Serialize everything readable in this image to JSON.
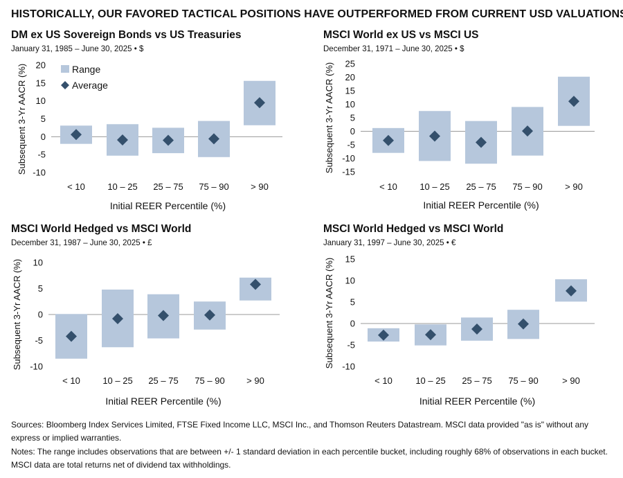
{
  "title": "HISTORICALLY, OUR FAVORED TACTICAL POSITIONS HAVE OUTPERFORMED FROM CURRENT USD VALUATIONS",
  "colors": {
    "range": "#b6c7dc",
    "average": "#34506c",
    "zero_line": "#9a9a9a"
  },
  "chart_data": [
    {
      "type": "bar",
      "title": "DM ex US Sovereign Bonds vs US Treasuries",
      "subtitle": "January 31, 1985 – June 30, 2025 • $",
      "xlabel": "Initial REER Percentile (%)",
      "ylabel": "Subsequent 3-Yr AACR (%)",
      "ylim": [
        -10,
        20
      ],
      "yticks": [
        20,
        15,
        10,
        5,
        0,
        -5,
        -10
      ],
      "categories": [
        "< 10",
        "10 – 25",
        "25 – 75",
        "75 – 90",
        "> 90"
      ],
      "legend": {
        "placement": "top-left",
        "range_label": "Range",
        "average_label": "Average"
      },
      "series": [
        {
          "name": "Range",
          "low": [
            -2,
            -5.3,
            -4.6,
            -5.7,
            3.2
          ],
          "high": [
            3.1,
            3.5,
            2.5,
            4.4,
            15.6
          ]
        },
        {
          "name": "Average",
          "values": [
            0.6,
            -0.9,
            -1,
            -0.6,
            9.5
          ]
        }
      ]
    },
    {
      "type": "bar",
      "title": "MSCI World ex US vs MSCI US",
      "subtitle": "December 31, 1971 – June 30, 2025 • $",
      "xlabel": "Initial REER Percentile (%)",
      "ylabel": "Subsequent 3-Yr AACR (%)",
      "ylim": [
        -15,
        25
      ],
      "yticks": [
        25,
        20,
        15,
        10,
        5,
        0,
        -5,
        -10,
        -15
      ],
      "categories": [
        "< 10",
        "10 – 25",
        "25 – 75",
        "75 – 90",
        "> 90"
      ],
      "series": [
        {
          "name": "Range",
          "low": [
            -8,
            -11,
            -12,
            -9,
            2
          ],
          "high": [
            1.2,
            7.5,
            3.8,
            9,
            20.2
          ]
        },
        {
          "name": "Average",
          "values": [
            -3.4,
            -1.8,
            -4.1,
            0.1,
            11.1
          ]
        }
      ]
    },
    {
      "type": "bar",
      "title": "MSCI World Hedged vs MSCI World",
      "subtitle": "December 31, 1987 – June 30, 2025 • £",
      "xlabel": "Initial REER Percentile (%)",
      "ylabel": "Subsequent 3-Yr AACR (%)",
      "ylim": [
        -10,
        10
      ],
      "yticks": [
        10,
        5,
        0,
        -5,
        -10
      ],
      "categories": [
        "< 10",
        "10 – 25",
        "25 – 75",
        "75 – 90",
        "> 90"
      ],
      "series": [
        {
          "name": "Range",
          "low": [
            -8.5,
            -6.3,
            -4.6,
            -2.9,
            2.7
          ],
          "high": [
            0.1,
            4.8,
            3.9,
            2.5,
            7.1
          ]
        },
        {
          "name": "Average",
          "values": [
            -4.2,
            -0.8,
            -0.2,
            -0.1,
            5.8
          ]
        }
      ]
    },
    {
      "type": "bar",
      "title": "MSCI World Hedged vs MSCI World",
      "subtitle": "January 31, 1997 – June 30, 2025 • €",
      "xlabel": "Initial REER Percentile (%)",
      "ylabel": "Subsequent 3-Yr AACR (%)",
      "ylim": [
        -10,
        15
      ],
      "yticks": [
        15,
        10,
        5,
        0,
        -5,
        -10
      ],
      "categories": [
        "< 10",
        "10 – 25",
        "25 – 75",
        "75 – 90",
        "> 90"
      ],
      "series": [
        {
          "name": "Range",
          "low": [
            -4.2,
            -5.1,
            -4,
            -3.6,
            5.1
          ],
          "high": [
            -1.1,
            -0.2,
            1.4,
            3.2,
            10.3
          ]
        },
        {
          "name": "Average",
          "values": [
            -2.7,
            -2.6,
            -1.3,
            -0.1,
            7.6
          ]
        }
      ]
    }
  ],
  "footer": {
    "sources": "Sources: Bloomberg Index Services Limited, FTSE Fixed Income LLC, MSCI Inc., and Thomson Reuters Datastream. MSCI data provided \"as is\" without any express or implied warranties.",
    "notes": "Notes: The range includes observations that are between +/- 1 standard deviation in each percentile bucket, including roughly 68% of observations in each bucket. MSCI data are total returns net of dividend tax withholdings."
  }
}
